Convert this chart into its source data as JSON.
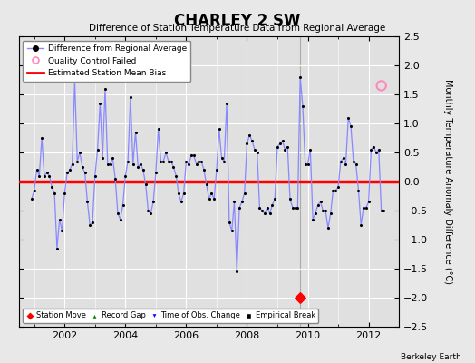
{
  "title": "CHARLEY 2 SW",
  "subtitle": "Difference of Station Temperature Data from Regional Average",
  "ylabel": "Monthly Temperature Anomaly Difference (°C)",
  "bias": 0.0,
  "ylim": [
    -2.5,
    2.5
  ],
  "xlim": [
    2000.5,
    2013.0
  ],
  "line_color": "#8888ff",
  "bias_color": "#ff0000",
  "plot_bg_color": "#e0e0e0",
  "fig_bg_color": "#e8e8e8",
  "station_move_x": 2009.75,
  "station_move_y": -2.0,
  "qc_fail_x": 2012.42,
  "qc_fail_y": 1.65,
  "vline_x": 2009.75,
  "series": [
    [
      2000.917,
      -0.3
    ],
    [
      2001.0,
      -0.15
    ],
    [
      2001.083,
      0.2
    ],
    [
      2001.167,
      0.1
    ],
    [
      2001.25,
      0.75
    ],
    [
      2001.333,
      0.1
    ],
    [
      2001.417,
      0.15
    ],
    [
      2001.5,
      0.1
    ],
    [
      2001.583,
      -0.1
    ],
    [
      2001.667,
      -0.2
    ],
    [
      2001.75,
      -1.15
    ],
    [
      2001.833,
      -0.65
    ],
    [
      2001.917,
      -0.85
    ],
    [
      2002.0,
      -0.2
    ],
    [
      2002.083,
      0.15
    ],
    [
      2002.167,
      0.2
    ],
    [
      2002.25,
      0.3
    ],
    [
      2002.333,
      1.75
    ],
    [
      2002.417,
      0.35
    ],
    [
      2002.5,
      0.5
    ],
    [
      2002.583,
      0.25
    ],
    [
      2002.667,
      0.15
    ],
    [
      2002.75,
      -0.35
    ],
    [
      2002.833,
      -0.75
    ],
    [
      2002.917,
      -0.7
    ],
    [
      2003.0,
      0.1
    ],
    [
      2003.083,
      0.55
    ],
    [
      2003.167,
      1.35
    ],
    [
      2003.25,
      0.4
    ],
    [
      2003.333,
      1.6
    ],
    [
      2003.417,
      0.3
    ],
    [
      2003.5,
      0.3
    ],
    [
      2003.583,
      0.4
    ],
    [
      2003.667,
      0.05
    ],
    [
      2003.75,
      -0.55
    ],
    [
      2003.833,
      -0.65
    ],
    [
      2003.917,
      -0.4
    ],
    [
      2004.0,
      0.1
    ],
    [
      2004.083,
      0.35
    ],
    [
      2004.167,
      1.45
    ],
    [
      2004.25,
      0.3
    ],
    [
      2004.333,
      0.85
    ],
    [
      2004.417,
      0.25
    ],
    [
      2004.5,
      0.3
    ],
    [
      2004.583,
      0.2
    ],
    [
      2004.667,
      -0.05
    ],
    [
      2004.75,
      -0.5
    ],
    [
      2004.833,
      -0.55
    ],
    [
      2004.917,
      -0.35
    ],
    [
      2005.0,
      0.15
    ],
    [
      2005.083,
      0.9
    ],
    [
      2005.167,
      0.35
    ],
    [
      2005.25,
      0.35
    ],
    [
      2005.333,
      0.5
    ],
    [
      2005.417,
      0.35
    ],
    [
      2005.5,
      0.35
    ],
    [
      2005.583,
      0.25
    ],
    [
      2005.667,
      0.1
    ],
    [
      2005.75,
      -0.2
    ],
    [
      2005.833,
      -0.35
    ],
    [
      2005.917,
      -0.2
    ],
    [
      2006.0,
      0.35
    ],
    [
      2006.083,
      0.3
    ],
    [
      2006.167,
      0.45
    ],
    [
      2006.25,
      0.45
    ],
    [
      2006.333,
      0.3
    ],
    [
      2006.417,
      0.35
    ],
    [
      2006.5,
      0.35
    ],
    [
      2006.583,
      0.2
    ],
    [
      2006.667,
      -0.05
    ],
    [
      2006.75,
      -0.3
    ],
    [
      2006.833,
      -0.2
    ],
    [
      2006.917,
      -0.3
    ],
    [
      2007.0,
      0.2
    ],
    [
      2007.083,
      0.9
    ],
    [
      2007.167,
      0.4
    ],
    [
      2007.25,
      0.35
    ],
    [
      2007.333,
      1.35
    ],
    [
      2007.417,
      -0.7
    ],
    [
      2007.5,
      -0.85
    ],
    [
      2007.583,
      -0.35
    ],
    [
      2007.667,
      -1.55
    ],
    [
      2007.75,
      -0.45
    ],
    [
      2007.833,
      -0.35
    ],
    [
      2007.917,
      -0.2
    ],
    [
      2008.0,
      0.65
    ],
    [
      2008.083,
      0.8
    ],
    [
      2008.167,
      0.7
    ],
    [
      2008.25,
      0.55
    ],
    [
      2008.333,
      0.5
    ],
    [
      2008.417,
      -0.45
    ],
    [
      2008.5,
      -0.5
    ],
    [
      2008.583,
      -0.55
    ],
    [
      2008.667,
      -0.45
    ],
    [
      2008.75,
      -0.55
    ],
    [
      2008.833,
      -0.4
    ],
    [
      2008.917,
      -0.3
    ],
    [
      2009.0,
      0.6
    ],
    [
      2009.083,
      0.65
    ],
    [
      2009.167,
      0.7
    ],
    [
      2009.25,
      0.55
    ],
    [
      2009.333,
      0.6
    ],
    [
      2009.417,
      -0.3
    ],
    [
      2009.5,
      -0.45
    ],
    [
      2009.583,
      -0.45
    ],
    [
      2009.667,
      -0.45
    ],
    [
      2009.75,
      1.8
    ],
    [
      2009.833,
      1.3
    ],
    [
      2009.917,
      0.3
    ],
    [
      2010.0,
      0.3
    ],
    [
      2010.083,
      0.55
    ],
    [
      2010.167,
      -0.65
    ],
    [
      2010.25,
      -0.55
    ],
    [
      2010.333,
      -0.4
    ],
    [
      2010.417,
      -0.35
    ],
    [
      2010.5,
      -0.5
    ],
    [
      2010.583,
      -0.5
    ],
    [
      2010.667,
      -0.8
    ],
    [
      2010.75,
      -0.55
    ],
    [
      2010.833,
      -0.15
    ],
    [
      2010.917,
      -0.15
    ],
    [
      2011.0,
      -0.1
    ],
    [
      2011.083,
      0.35
    ],
    [
      2011.167,
      0.4
    ],
    [
      2011.25,
      0.3
    ],
    [
      2011.333,
      1.1
    ],
    [
      2011.417,
      0.95
    ],
    [
      2011.5,
      0.35
    ],
    [
      2011.583,
      0.3
    ],
    [
      2011.667,
      -0.15
    ],
    [
      2011.75,
      -0.75
    ],
    [
      2011.833,
      -0.45
    ],
    [
      2011.917,
      -0.45
    ],
    [
      2012.0,
      -0.35
    ],
    [
      2012.083,
      0.55
    ],
    [
      2012.167,
      0.6
    ],
    [
      2012.25,
      0.5
    ],
    [
      2012.333,
      0.55
    ],
    [
      2012.417,
      -0.5
    ],
    [
      2012.5,
      -0.5
    ]
  ]
}
